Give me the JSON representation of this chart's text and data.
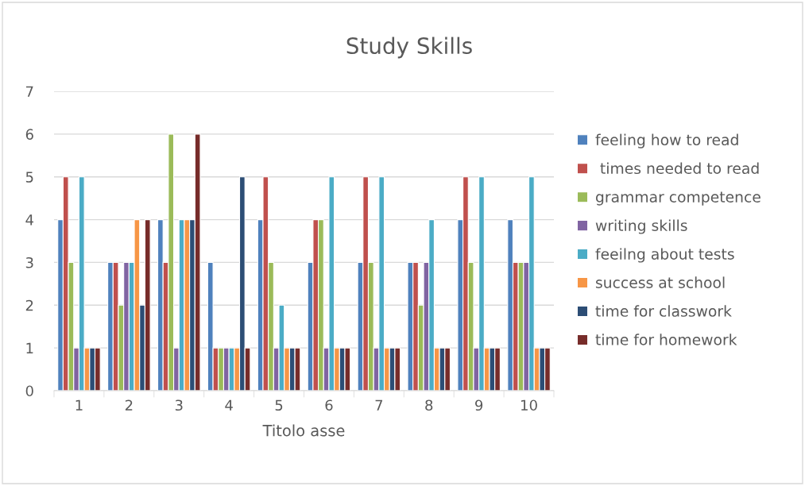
{
  "chart_data": {
    "type": "bar",
    "title": "Study Skills",
    "xlabel": "Titolo asse",
    "categories": [
      "1",
      "2",
      "3",
      "4",
      "5",
      "6",
      "7",
      "8",
      "9",
      "10"
    ],
    "series": [
      {
        "name": "feeling how to read",
        "color": "#4f81bd",
        "values": [
          4,
          3,
          4,
          3,
          4,
          3,
          3,
          3,
          4,
          4
        ]
      },
      {
        "name": " times needed to read",
        "color": "#c0504d",
        "values": [
          5,
          3,
          3,
          1,
          5,
          4,
          5,
          3,
          5,
          3
        ]
      },
      {
        "name": "grammar competence",
        "color": "#9bbb59",
        "values": [
          3,
          2,
          6,
          1,
          3,
          4,
          3,
          2,
          3,
          3
        ]
      },
      {
        "name": "writing skills",
        "color": "#8064a2",
        "values": [
          1,
          3,
          1,
          1,
          1,
          1,
          1,
          3,
          1,
          3
        ]
      },
      {
        "name": "feeilng about tests",
        "color": "#4bacc6",
        "values": [
          5,
          3,
          4,
          1,
          2,
          5,
          5,
          4,
          5,
          5
        ]
      },
      {
        "name": "success at school",
        "color": "#f79646",
        "values": [
          1,
          4,
          4,
          1,
          1,
          1,
          1,
          1,
          1,
          1
        ]
      },
      {
        "name": "time for classwork",
        "color": "#2c4d75",
        "values": [
          1,
          2,
          4,
          5,
          1,
          1,
          1,
          1,
          1,
          1
        ]
      },
      {
        "name": "time for homework",
        "color": "#772c2a",
        "values": [
          1,
          4,
          6,
          1,
          1,
          1,
          1,
          1,
          1,
          1
        ]
      }
    ],
    "ylim": [
      0,
      7
    ],
    "yticks": [
      0,
      1,
      2,
      3,
      4,
      5,
      6,
      7
    ],
    "grid": "y",
    "legend": "right"
  }
}
